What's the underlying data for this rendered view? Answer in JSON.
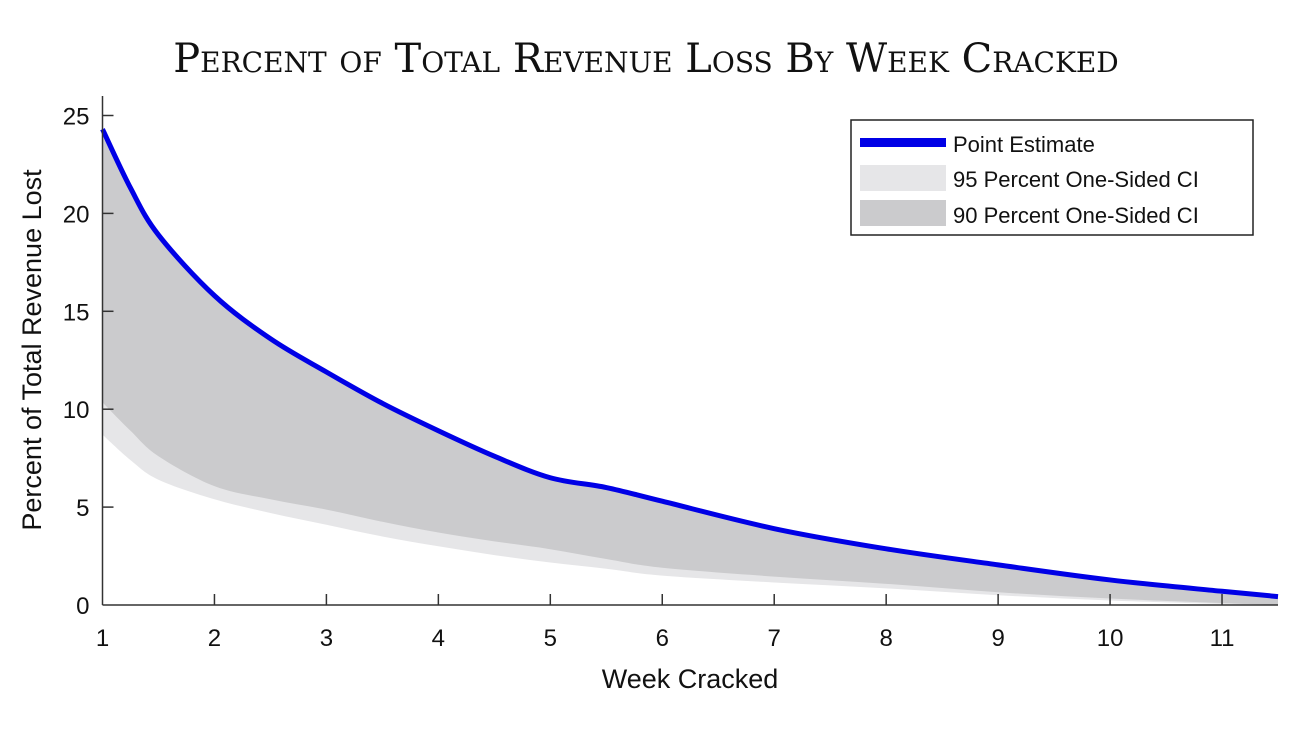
{
  "chart_data": {
    "type": "area",
    "title": "Percent of Total Revenue Loss By Week Cracked",
    "xlabel": "Week Cracked",
    "ylabel": "Percent of Total Revenue Lost",
    "xlim": [
      1,
      11.5
    ],
    "ylim": [
      0,
      26
    ],
    "xticks": [
      1,
      2,
      3,
      4,
      5,
      6,
      7,
      8,
      9,
      10,
      11
    ],
    "xtick_labels": [
      "1",
      "2",
      "3",
      "4",
      "5",
      "6",
      "7",
      "8",
      "9",
      "10",
      "11"
    ],
    "yticks": [
      0,
      5,
      10,
      15,
      20,
      25
    ],
    "ytick_labels": [
      "0",
      "5",
      "10",
      "15",
      "20",
      "25"
    ],
    "grid": false,
    "legend_position": "top-right",
    "x": [
      1,
      1.25,
      1.5,
      2,
      2.5,
      3,
      3.5,
      4,
      4.5,
      5,
      5.5,
      6,
      7,
      8,
      9,
      10,
      11,
      11.5
    ],
    "series": [
      {
        "name": "Point Estimate",
        "type": "line",
        "color": "#0000e6",
        "values": [
          24.3,
          21.3,
          18.9,
          15.8,
          13.6,
          11.9,
          10.3,
          8.9,
          7.6,
          6.5,
          6.0,
          5.3,
          3.9,
          2.87,
          2.05,
          1.28,
          0.7,
          0.43
        ]
      },
      {
        "name": "95 Percent One-Sided CI",
        "type": "band",
        "color": "#e6e6e8",
        "lower": [
          8.7,
          7.4,
          6.4,
          5.4,
          4.7,
          4.1,
          3.5,
          3.0,
          2.55,
          2.17,
          1.85,
          1.5,
          1.15,
          0.85,
          0.5,
          0.23,
          0.05,
          0.0
        ],
        "upper": [
          24.3,
          21.3,
          18.9,
          15.8,
          13.6,
          11.9,
          10.3,
          8.9,
          7.6,
          6.5,
          6.0,
          5.3,
          3.9,
          2.87,
          2.05,
          1.28,
          0.7,
          0.43
        ]
      },
      {
        "name": "90 Percent One-Sided CI",
        "type": "band",
        "color": "#cbcbcd",
        "lower": [
          10.35,
          8.9,
          7.6,
          6.07,
          5.4,
          4.87,
          4.25,
          3.7,
          3.25,
          2.85,
          2.35,
          1.9,
          1.45,
          1.08,
          0.65,
          0.33,
          0.1,
          0.0
        ],
        "upper": [
          24.3,
          21.3,
          18.9,
          15.8,
          13.6,
          11.9,
          10.3,
          8.9,
          7.6,
          6.5,
          6.0,
          5.3,
          3.9,
          2.87,
          2.05,
          1.28,
          0.7,
          0.43
        ]
      }
    ],
    "legend": [
      "Point Estimate",
      "95 Percent One-Sided CI",
      "90 Percent One-Sided CI"
    ]
  }
}
